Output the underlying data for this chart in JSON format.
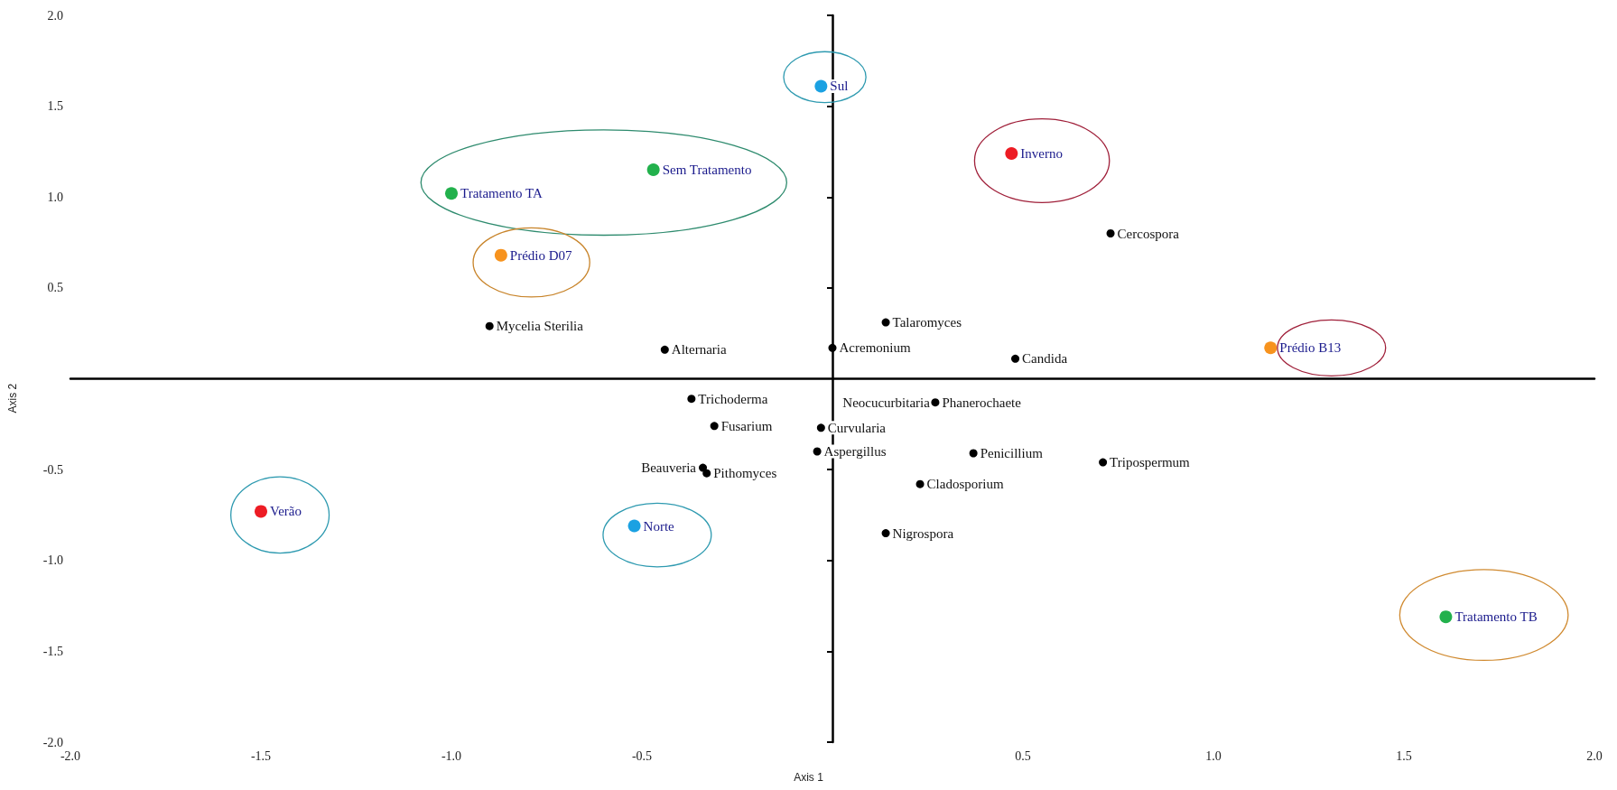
{
  "chart_data": {
    "type": "scatter",
    "xlabel": "Axis 1",
    "ylabel": "Axis 2",
    "xlim": [
      -2,
      2
    ],
    "ylim": [
      -2,
      2
    ],
    "xticks": [
      {
        "value": -2,
        "label": "-2.0"
      },
      {
        "value": -1.5,
        "label": "-1.5"
      },
      {
        "value": -1,
        "label": "-1.0"
      },
      {
        "value": -0.5,
        "label": "-0.5"
      },
      {
        "value": 0.5,
        "label": "0.5"
      },
      {
        "value": 1,
        "label": "1.0"
      },
      {
        "value": 1.5,
        "label": "1.5"
      },
      {
        "value": 2,
        "label": "2.0"
      }
    ],
    "yticks": [
      {
        "value": -2,
        "label": "-2.0"
      },
      {
        "value": -1.5,
        "label": "-1.5"
      },
      {
        "value": -1,
        "label": "-1.0"
      },
      {
        "value": -0.5,
        "label": "-0.5"
      },
      {
        "value": 0.5,
        "label": "0.5"
      },
      {
        "value": 1,
        "label": "1.0"
      },
      {
        "value": 1.5,
        "label": "1.5"
      },
      {
        "value": 2,
        "label": "2.0"
      }
    ],
    "grid": false,
    "legend": false,
    "marker": "circle",
    "annotations": [
      {
        "text": "Neocucurbitaria",
        "x": 0.27,
        "y": -0.13
      }
    ],
    "series": [
      {
        "name": "Sul",
        "color": "#1ba1e2",
        "x": [
          -0.03
        ],
        "values": [
          1.61
        ]
      },
      {
        "name": "Inverno",
        "color": "#ed1c24",
        "x": [
          0.47
        ],
        "values": [
          1.24
        ]
      },
      {
        "name": "Sem Tratamento",
        "color": "#22b14c",
        "x": [
          -0.47
        ],
        "values": [
          1.15
        ]
      },
      {
        "name": "Tratamento TA",
        "color": "#22b14c",
        "x": [
          -1.0
        ],
        "values": [
          1.02
        ]
      },
      {
        "name": "Cercospora",
        "color": "#000000",
        "x": [
          0.73
        ],
        "values": [
          0.8
        ]
      },
      {
        "name": "Prédio D07",
        "color": "#f7931e",
        "x": [
          -0.87
        ],
        "values": [
          0.68
        ]
      },
      {
        "name": "Talaromyces",
        "color": "#000000",
        "x": [
          0.14
        ],
        "values": [
          0.31
        ]
      },
      {
        "name": "Mycelia Sterilia",
        "color": "#000000",
        "x": [
          -0.9
        ],
        "values": [
          0.29
        ]
      },
      {
        "name": "Alternaria",
        "color": "#000000",
        "x": [
          -0.44
        ],
        "values": [
          0.16
        ]
      },
      {
        "name": "Acremonium",
        "color": "#000000",
        "x": [
          0.0
        ],
        "values": [
          0.17
        ]
      },
      {
        "name": "Candida",
        "color": "#000000",
        "x": [
          0.48
        ],
        "values": [
          0.11
        ]
      },
      {
        "name": "Prédio B13",
        "color": "#f7931e",
        "x": [
          1.15
        ],
        "values": [
          0.17
        ]
      },
      {
        "name": "Trichoderma",
        "color": "#000000",
        "x": [
          -0.37
        ],
        "values": [
          -0.11
        ]
      },
      {
        "name": "Phanerochaete",
        "color": "#000000",
        "x": [
          0.27
        ],
        "values": [
          -0.13
        ]
      },
      {
        "name": "Fusarium",
        "color": "#000000",
        "x": [
          -0.31
        ],
        "values": [
          -0.26
        ]
      },
      {
        "name": "Curvularia",
        "color": "#000000",
        "x": [
          -0.03
        ],
        "values": [
          -0.27
        ]
      },
      {
        "name": "Aspergillus",
        "color": "#000000",
        "x": [
          -0.04
        ],
        "values": [
          -0.4
        ]
      },
      {
        "name": "Penicillium",
        "color": "#000000",
        "x": [
          0.37
        ],
        "values": [
          -0.41
        ]
      },
      {
        "name": "Tripospermum",
        "color": "#000000",
        "x": [
          0.71
        ],
        "values": [
          -0.46
        ]
      },
      {
        "name": "Beauveria",
        "color": "#000000",
        "x": [
          -0.34
        ],
        "values": [
          -0.49
        ]
      },
      {
        "name": "Pithomyces",
        "color": "#000000",
        "x": [
          -0.33
        ],
        "values": [
          -0.52
        ]
      },
      {
        "name": "Cladosporium",
        "color": "#000000",
        "x": [
          0.23
        ],
        "values": [
          -0.58
        ]
      },
      {
        "name": "Verão",
        "color": "#ed1c24",
        "x": [
          -1.5
        ],
        "values": [
          -0.73
        ]
      },
      {
        "name": "Norte",
        "color": "#1ba1e2",
        "x": [
          -0.52
        ],
        "values": [
          -0.81
        ]
      },
      {
        "name": "Nigrospora",
        "color": "#000000",
        "x": [
          0.14
        ],
        "values": [
          -0.85
        ]
      },
      {
        "name": "Tratamento TB",
        "color": "#22b14c",
        "x": [
          1.61
        ],
        "values": [
          -1.31
        ]
      }
    ]
  }
}
